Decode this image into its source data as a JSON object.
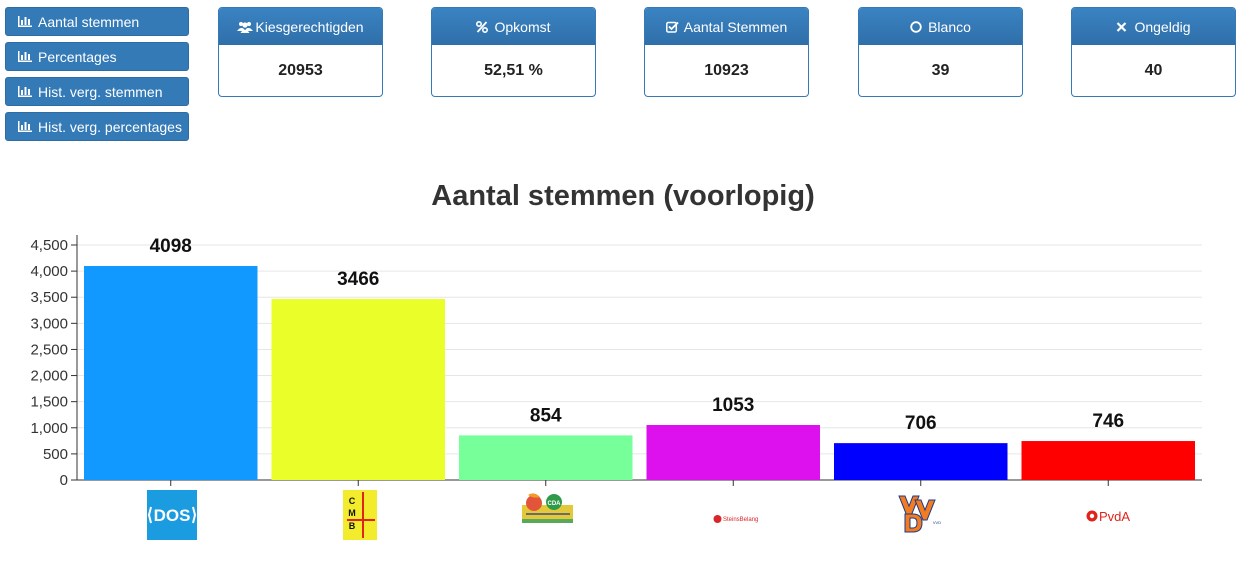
{
  "nav": {
    "buttons": [
      {
        "label": "Aantal stemmen",
        "icon": "bar-chart-icon"
      },
      {
        "label": "Percentages",
        "icon": "bar-chart-icon"
      },
      {
        "label": "Hist. verg. stemmen",
        "icon": "bar-chart-icon"
      },
      {
        "label": "Hist. verg. percentages",
        "icon": "bar-chart-icon"
      }
    ]
  },
  "stats": [
    {
      "label": "Kiesgerechtigden",
      "value": "20953",
      "icon": "users-icon"
    },
    {
      "label": "Opkomst",
      "value": "52,51 %",
      "icon": "percent-icon"
    },
    {
      "label": "Aantal Stemmen",
      "value": "10923",
      "icon": "check-square-icon"
    },
    {
      "label": "Blanco",
      "value": "39",
      "icon": "circle-icon"
    },
    {
      "label": "Ongeldig",
      "value": "40",
      "icon": "close-icon"
    }
  ],
  "colors": {
    "primary": "#337ab7",
    "bars": [
      "#1199ff",
      "#eaff2a",
      "#77ff99",
      "#dd11ee",
      "#0000ff",
      "#ff0000"
    ]
  },
  "logos": {
    "dos": "DOS",
    "cmb": [
      "C",
      "M",
      "B"
    ],
    "cda": "CDA",
    "steinsbelang": "SteinsBelang",
    "vvd": "VVD",
    "pvda": "PvdA"
  },
  "chart_data": {
    "type": "bar",
    "title": "Aantal stemmen (voorlopig)",
    "categories": [
      "DOS",
      "CMB",
      "CDA",
      "Steins Belang",
      "VVD",
      "PvdA"
    ],
    "values": [
      4098,
      3466,
      854,
      1053,
      706,
      746
    ],
    "data_labels": [
      "4098",
      "3466",
      "854",
      "1053",
      "706",
      "746"
    ],
    "ylim": [
      0,
      4500
    ],
    "yticks": [
      0,
      500,
      1000,
      1500,
      2000,
      2500,
      3000,
      3500,
      4000,
      4500
    ],
    "ytick_labels": [
      "0",
      "500",
      "1,000",
      "1,500",
      "2,000",
      "2,500",
      "3,000",
      "3,500",
      "4,000",
      "4,500"
    ],
    "grid": true,
    "xlabel": "",
    "ylabel": ""
  }
}
